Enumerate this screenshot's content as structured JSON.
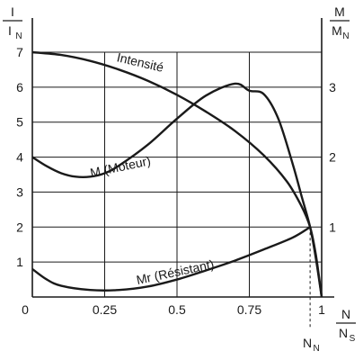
{
  "chart_data": {
    "type": "line",
    "left_axis": {
      "label_num": "I",
      "label_den": "I",
      "label_den_sub": "N",
      "ticks": [
        {
          "v": 1,
          "label": "1"
        },
        {
          "v": 2,
          "label": "2"
        },
        {
          "v": 3,
          "label": "3"
        },
        {
          "v": 4,
          "label": "4"
        },
        {
          "v": 5,
          "label": "5"
        },
        {
          "v": 6,
          "label": "6"
        },
        {
          "v": 7,
          "label": "7"
        }
      ],
      "range": [
        0,
        8
      ]
    },
    "right_axis": {
      "label_num": "M",
      "label_den": "M",
      "label_den_sub": "N",
      "ticks": [
        {
          "v": 1,
          "label": "1"
        },
        {
          "v": 2,
          "label": "2"
        },
        {
          "v": 3,
          "label": "3"
        }
      ],
      "range": [
        0,
        4
      ]
    },
    "x_axis": {
      "label_num": "N",
      "label_den": "N",
      "label_den_sub": "S",
      "ticks": [
        {
          "v": 0,
          "label": "0"
        },
        {
          "v": 0.25,
          "label": "0.25"
        },
        {
          "v": 0.5,
          "label": "0.5"
        },
        {
          "v": 0.75,
          "label": "0.75"
        },
        {
          "v": 1,
          "label": "1"
        }
      ],
      "range": [
        0,
        1.1
      ]
    },
    "marker": {
      "x": 0.96,
      "label": "N",
      "label_sub": "N"
    },
    "grid": true,
    "series": [
      {
        "name": "Intensité",
        "axis": "left",
        "x": [
          0,
          0.1,
          0.2,
          0.3,
          0.4,
          0.5,
          0.6,
          0.7,
          0.8,
          0.88,
          0.93,
          0.96,
          0.98,
          1.0
        ],
        "y": [
          7.0,
          6.92,
          6.75,
          6.5,
          6.18,
          5.78,
          5.3,
          4.75,
          4.05,
          3.3,
          2.6,
          2.0,
          1.2,
          0
        ]
      },
      {
        "name": "M (Moteur)",
        "axis": "right",
        "x": [
          0,
          0.05,
          0.1,
          0.15,
          0.2,
          0.25,
          0.3,
          0.4,
          0.5,
          0.6,
          0.7,
          0.75,
          0.8,
          0.85,
          0.9,
          0.93,
          0.96,
          0.98,
          1.0
        ],
        "y": [
          2.0,
          1.87,
          1.77,
          1.72,
          1.72,
          1.77,
          1.88,
          2.18,
          2.55,
          2.88,
          3.05,
          2.95,
          2.9,
          2.55,
          1.9,
          1.45,
          1.0,
          0.55,
          0
        ]
      },
      {
        "name": "Mr (Résistant)",
        "axis": "right",
        "x": [
          0,
          0.05,
          0.1,
          0.2,
          0.3,
          0.4,
          0.5,
          0.6,
          0.7,
          0.8,
          0.9,
          0.96
        ],
        "y": [
          0.4,
          0.25,
          0.16,
          0.1,
          0.1,
          0.15,
          0.25,
          0.38,
          0.52,
          0.68,
          0.85,
          1.0
        ]
      }
    ],
    "annotations": [
      {
        "text": "Intensité",
        "series": 0
      },
      {
        "text": "M (Moteur)",
        "series": 1
      },
      {
        "text": "Mr (Résistant)",
        "series": 2
      }
    ]
  }
}
